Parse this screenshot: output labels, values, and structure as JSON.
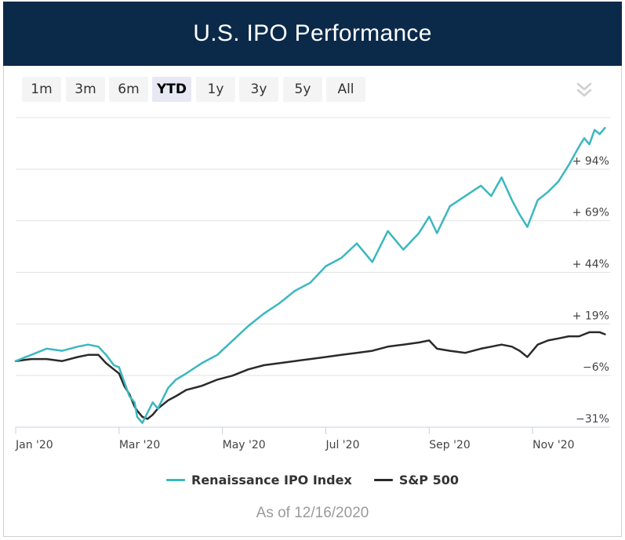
{
  "header": {
    "title": "U.S. IPO Performance"
  },
  "range_buttons": [
    {
      "label": "1m",
      "active": false
    },
    {
      "label": "3m",
      "active": false
    },
    {
      "label": "6m",
      "active": false
    },
    {
      "label": "YTD",
      "active": true
    },
    {
      "label": "1y",
      "active": false
    },
    {
      "label": "3y",
      "active": false
    },
    {
      "label": "5y",
      "active": false
    },
    {
      "label": "All",
      "active": false
    }
  ],
  "menu_icon": "chevron-double-down-icon",
  "colors": {
    "header_bg": "#0b2a4a",
    "ipo": "#3bb7c0",
    "sp500": "#2a2a2a"
  },
  "chart_data": {
    "type": "line",
    "title": "U.S. IPO Performance",
    "x_labels": [
      "Jan '20",
      "Mar '20",
      "May '20",
      "Jul '20",
      "Sep '20",
      "Nov '20"
    ],
    "y_tick_labels": [
      "+ 94%",
      "+ 69%",
      "+ 44%",
      "+ 19%",
      "−6%",
      "−31%"
    ],
    "y_ticks": [
      94,
      69,
      44,
      19,
      -6,
      -31
    ],
    "ylim": [
      -31,
      119
    ],
    "x_unit": "months since Jan 1, 2020",
    "xlim": [
      0,
      11.5
    ],
    "grid": true,
    "series": [
      {
        "name": "Renaissance IPO Index",
        "color": "#3bb7c0",
        "x": [
          0,
          0.3,
          0.6,
          0.9,
          1.2,
          1.4,
          1.6,
          1.75,
          1.9,
          2.0,
          2.1,
          2.2,
          2.3,
          2.35,
          2.45,
          2.55,
          2.65,
          2.75,
          2.85,
          2.95,
          3.1,
          3.3,
          3.6,
          3.9,
          4.2,
          4.5,
          4.8,
          5.1,
          5.4,
          5.7,
          6.0,
          6.3,
          6.6,
          6.9,
          7.2,
          7.5,
          7.8,
          8.0,
          8.15,
          8.4,
          8.7,
          9.0,
          9.2,
          9.4,
          9.6,
          9.75,
          9.9,
          10.1,
          10.3,
          10.5,
          10.7,
          10.9,
          11.0,
          11.1,
          11.2,
          11.3,
          11.4
        ],
        "y": [
          1,
          4,
          7,
          6,
          8,
          9,
          8,
          4,
          -1,
          -2,
          -9,
          -16,
          -19,
          -26,
          -29,
          -24,
          -19,
          -22,
          -17,
          -12,
          -8,
          -5,
          0,
          4,
          11,
          18,
          24,
          29,
          35,
          39,
          47,
          51,
          58,
          49,
          64,
          55,
          63,
          71,
          63,
          76,
          81,
          86,
          81,
          90,
          79,
          72,
          66,
          79,
          83,
          88,
          96,
          105,
          109,
          106,
          113,
          111,
          114
        ]
      },
      {
        "name": "S&P 500",
        "color": "#2a2a2a",
        "x": [
          0,
          0.3,
          0.6,
          0.9,
          1.2,
          1.4,
          1.6,
          1.75,
          1.9,
          2.0,
          2.1,
          2.2,
          2.3,
          2.35,
          2.45,
          2.55,
          2.65,
          2.75,
          2.85,
          2.95,
          3.1,
          3.3,
          3.6,
          3.9,
          4.2,
          4.5,
          4.8,
          5.1,
          5.4,
          5.7,
          6.0,
          6.3,
          6.6,
          6.9,
          7.2,
          7.5,
          7.8,
          8.0,
          8.15,
          8.4,
          8.7,
          9.0,
          9.2,
          9.4,
          9.6,
          9.75,
          9.9,
          10.1,
          10.3,
          10.5,
          10.7,
          10.9,
          11.0,
          11.1,
          11.2,
          11.3,
          11.4
        ],
        "y": [
          1,
          2,
          2,
          1,
          3,
          4,
          4,
          0,
          -3,
          -5,
          -11,
          -15,
          -21,
          -23,
          -26,
          -27,
          -25,
          -22,
          -20,
          -18,
          -16,
          -13,
          -11,
          -8,
          -6,
          -3,
          -1,
          0,
          1,
          2,
          3,
          4,
          5,
          6,
          8,
          9,
          10,
          11,
          7,
          6,
          5,
          7,
          8,
          9,
          8,
          6,
          3,
          9,
          11,
          12,
          13,
          13,
          14,
          15,
          15,
          15,
          14
        ]
      }
    ]
  },
  "legend": {
    "items": [
      "Renaissance IPO Index",
      "S&P 500"
    ]
  },
  "footer": {
    "as_of": "As of 12/16/2020"
  }
}
